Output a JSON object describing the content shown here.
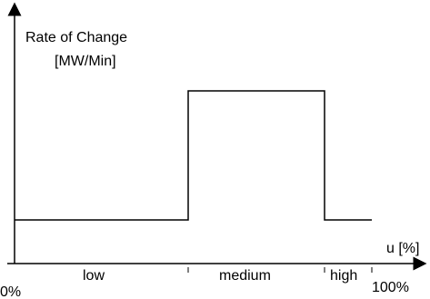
{
  "chart_data": {
    "type": "line",
    "title": "",
    "ylabel_line1": "Rate of Change",
    "ylabel_line2": "[MW/Min]",
    "xlabel": "u [%]",
    "x_axis": {
      "min_label": "0%",
      "max_label": "100%"
    },
    "zones": [
      {
        "label": "low"
      },
      {
        "label": "medium"
      },
      {
        "label": "high"
      }
    ],
    "colors": {
      "line": "#000000",
      "axis": "#000000"
    }
  }
}
